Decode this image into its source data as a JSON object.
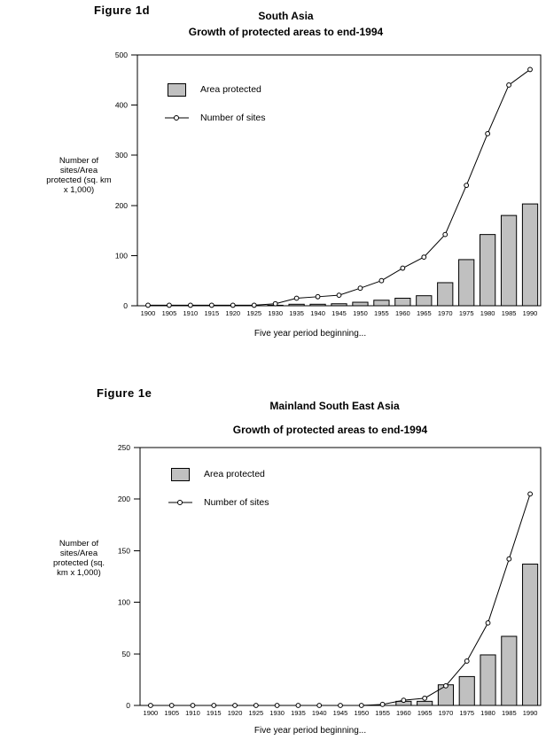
{
  "page": {
    "background": "#ffffff"
  },
  "colors": {
    "bar_fill": "#c0c0c0",
    "line": "#000000",
    "frame": "#000000",
    "marker_fill": "#ffffff"
  },
  "figures": [
    {
      "label": "Figure 1d"
    },
    {
      "label": "Figure 1e"
    }
  ],
  "chart_data": [
    {
      "type": "bar+line",
      "title": "South Asia",
      "subtitle": "Growth of protected areas to end-1994",
      "xlabel": "Five year period beginning...",
      "ylabel": "Number of sites/Area protected (sq. km x 1,000)",
      "ylabel_lines": [
        "Number of",
        "sites/Area",
        "protected (sq. km",
        "x 1,000)"
      ],
      "categories": [
        "1900",
        "1905",
        "1910",
        "1915",
        "1920",
        "1925",
        "1930",
        "1935",
        "1940",
        "1945",
        "1950",
        "1955",
        "1960",
        "1965",
        "1970",
        "1975",
        "1980",
        "1985",
        "1990"
      ],
      "series": [
        {
          "name": "Area protected",
          "type": "bar",
          "values": [
            0,
            0,
            0,
            0,
            0,
            0,
            1,
            3,
            3,
            4,
            7,
            11,
            15,
            20,
            46,
            92,
            142,
            180,
            203
          ]
        },
        {
          "name": "Number of sites",
          "type": "line",
          "values": [
            1,
            1,
            1,
            1,
            1,
            1,
            4,
            15,
            18,
            21,
            35,
            50,
            75,
            97,
            142,
            240,
            343,
            440,
            471
          ]
        }
      ],
      "ylim": [
        0,
        500
      ],
      "ytick_step": 100,
      "grid": false,
      "legend_position": "top-left-inside"
    },
    {
      "type": "bar+line",
      "title": "Mainland South East Asia",
      "subtitle": "Growth of protected areas to end-1994",
      "xlabel": "Five year period beginning...",
      "ylabel": "Number of sites/Area protected (sq. km x 1,000)",
      "ylabel_lines": [
        "Number of",
        "sites/Area",
        "protected (sq.",
        "km x 1,000)"
      ],
      "categories": [
        "1900",
        "1905",
        "1910",
        "1915",
        "1920",
        "1925",
        "1930",
        "1935",
        "1940",
        "1945",
        "1950",
        "1955",
        "1960",
        "1965",
        "1970",
        "1975",
        "1980",
        "1985",
        "1990"
      ],
      "series": [
        {
          "name": "Area protected",
          "type": "bar",
          "values": [
            0,
            0,
            0,
            0,
            0,
            0,
            0,
            0,
            0,
            0,
            0,
            0,
            4,
            4,
            20,
            28,
            49,
            67,
            137
          ]
        },
        {
          "name": "Number of sites",
          "type": "line",
          "values": [
            0,
            0,
            0,
            0,
            0,
            0,
            0,
            0,
            0,
            0,
            0,
            1,
            5,
            7,
            19,
            43,
            80,
            142,
            205
          ]
        }
      ],
      "ylim": [
        0,
        250
      ],
      "ytick_step": 50,
      "grid": false,
      "legend_position": "top-left-inside"
    }
  ]
}
